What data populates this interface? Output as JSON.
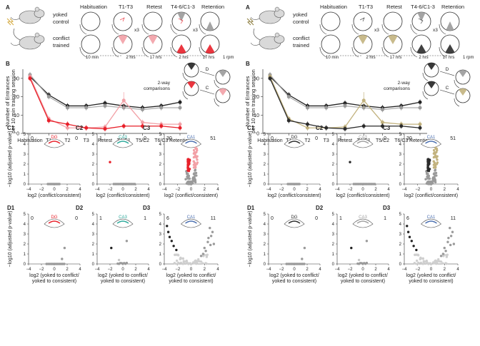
{
  "labels": {
    "A": "A",
    "B": "B",
    "C1": "C1",
    "C2": "C2",
    "C3": "C3",
    "D1": "D1",
    "D2": "D2",
    "D3": "D3"
  },
  "schematic": {
    "yoked": "yoked control",
    "conflict": "conflict trained",
    "phases": [
      "Habituation",
      "T1-T3",
      "Retest",
      "T4-6/C1-3",
      "Retention"
    ],
    "x3": "x3",
    "time_10min": "10 min",
    "time_2hrs": "2 hrs",
    "time_17hrs": "17 hrs",
    "time_1rpm": "1 rpm"
  },
  "lineplot": {
    "ylabel1": "Number of Entrances",
    "ylabel2": "per 10 min training session",
    "yticks": [
      "0",
      "10",
      "20",
      "30"
    ],
    "categories": [
      "Habituation",
      "T1",
      "T2",
      "T3",
      "Retest",
      "T4/C1",
      "T5/C2",
      "T6/C3",
      "Retention"
    ],
    "comparisons": "2-way comparisons",
    "D": "D",
    "C": "C"
  },
  "volcano": {
    "ylabel": "−log10 (adjusted p-value)",
    "yticks": [
      "0",
      "1",
      "2",
      "3",
      "4",
      "5"
    ],
    "xticks": [
      "−4",
      "−2",
      "0",
      "2",
      "4"
    ],
    "xlabel_C": "log2 (conflict/consistent)",
    "xlabel_D1": "log2 (yoked to conflict/",
    "xlabel_D2": "yoked to consistent)",
    "region_DG": "DG",
    "region_CA3": "CA3",
    "region_CA1": "CA1",
    "counts": {
      "C1": [
        "0",
        "0"
      ],
      "C2": [
        "1",
        "0"
      ],
      "C3": [
        "30",
        "51"
      ],
      "D1": [
        "0",
        "0"
      ],
      "D2": [
        "1",
        "1"
      ],
      "D3": [
        "6",
        "11"
      ]
    }
  },
  "colors": {
    "left": {
      "accent": "#e8202a",
      "light": "#f2a0a6",
      "gray": "#9a9a9a",
      "dark": "#222222",
      "ca3": "#2aa89a",
      "ca1": "#4a6fb0"
    },
    "right": {
      "accent": "#2b2b2b",
      "light": "#c2b27e",
      "gray": "#9a9a9a",
      "dark": "#222222",
      "ca3": "#a0a0a0",
      "ca1": "#4a6fb0"
    }
  },
  "chart_data": {
    "type": "line",
    "categories": [
      "Habituation",
      "T1",
      "T2",
      "T3",
      "Retest",
      "T4/C1",
      "T5/C2",
      "T6/C3",
      "Retention"
    ],
    "ylim": [
      0,
      35
    ],
    "ylabel": "Number of Entrances per 10 min training session",
    "series": [
      {
        "values": [
          31,
          21,
          15,
          15,
          16.5,
          15,
          14,
          15,
          17
        ]
      },
      {
        "values": [
          32,
          20,
          14,
          14,
          15,
          14,
          13,
          14,
          14
        ]
      },
      {
        "values": [
          31,
          8,
          3,
          3,
          3.5,
          18,
          6,
          5,
          5
        ]
      },
      {
        "values": [
          30,
          7,
          5,
          3,
          2.5,
          4,
          4,
          4,
          3
        ]
      }
    ]
  }
}
